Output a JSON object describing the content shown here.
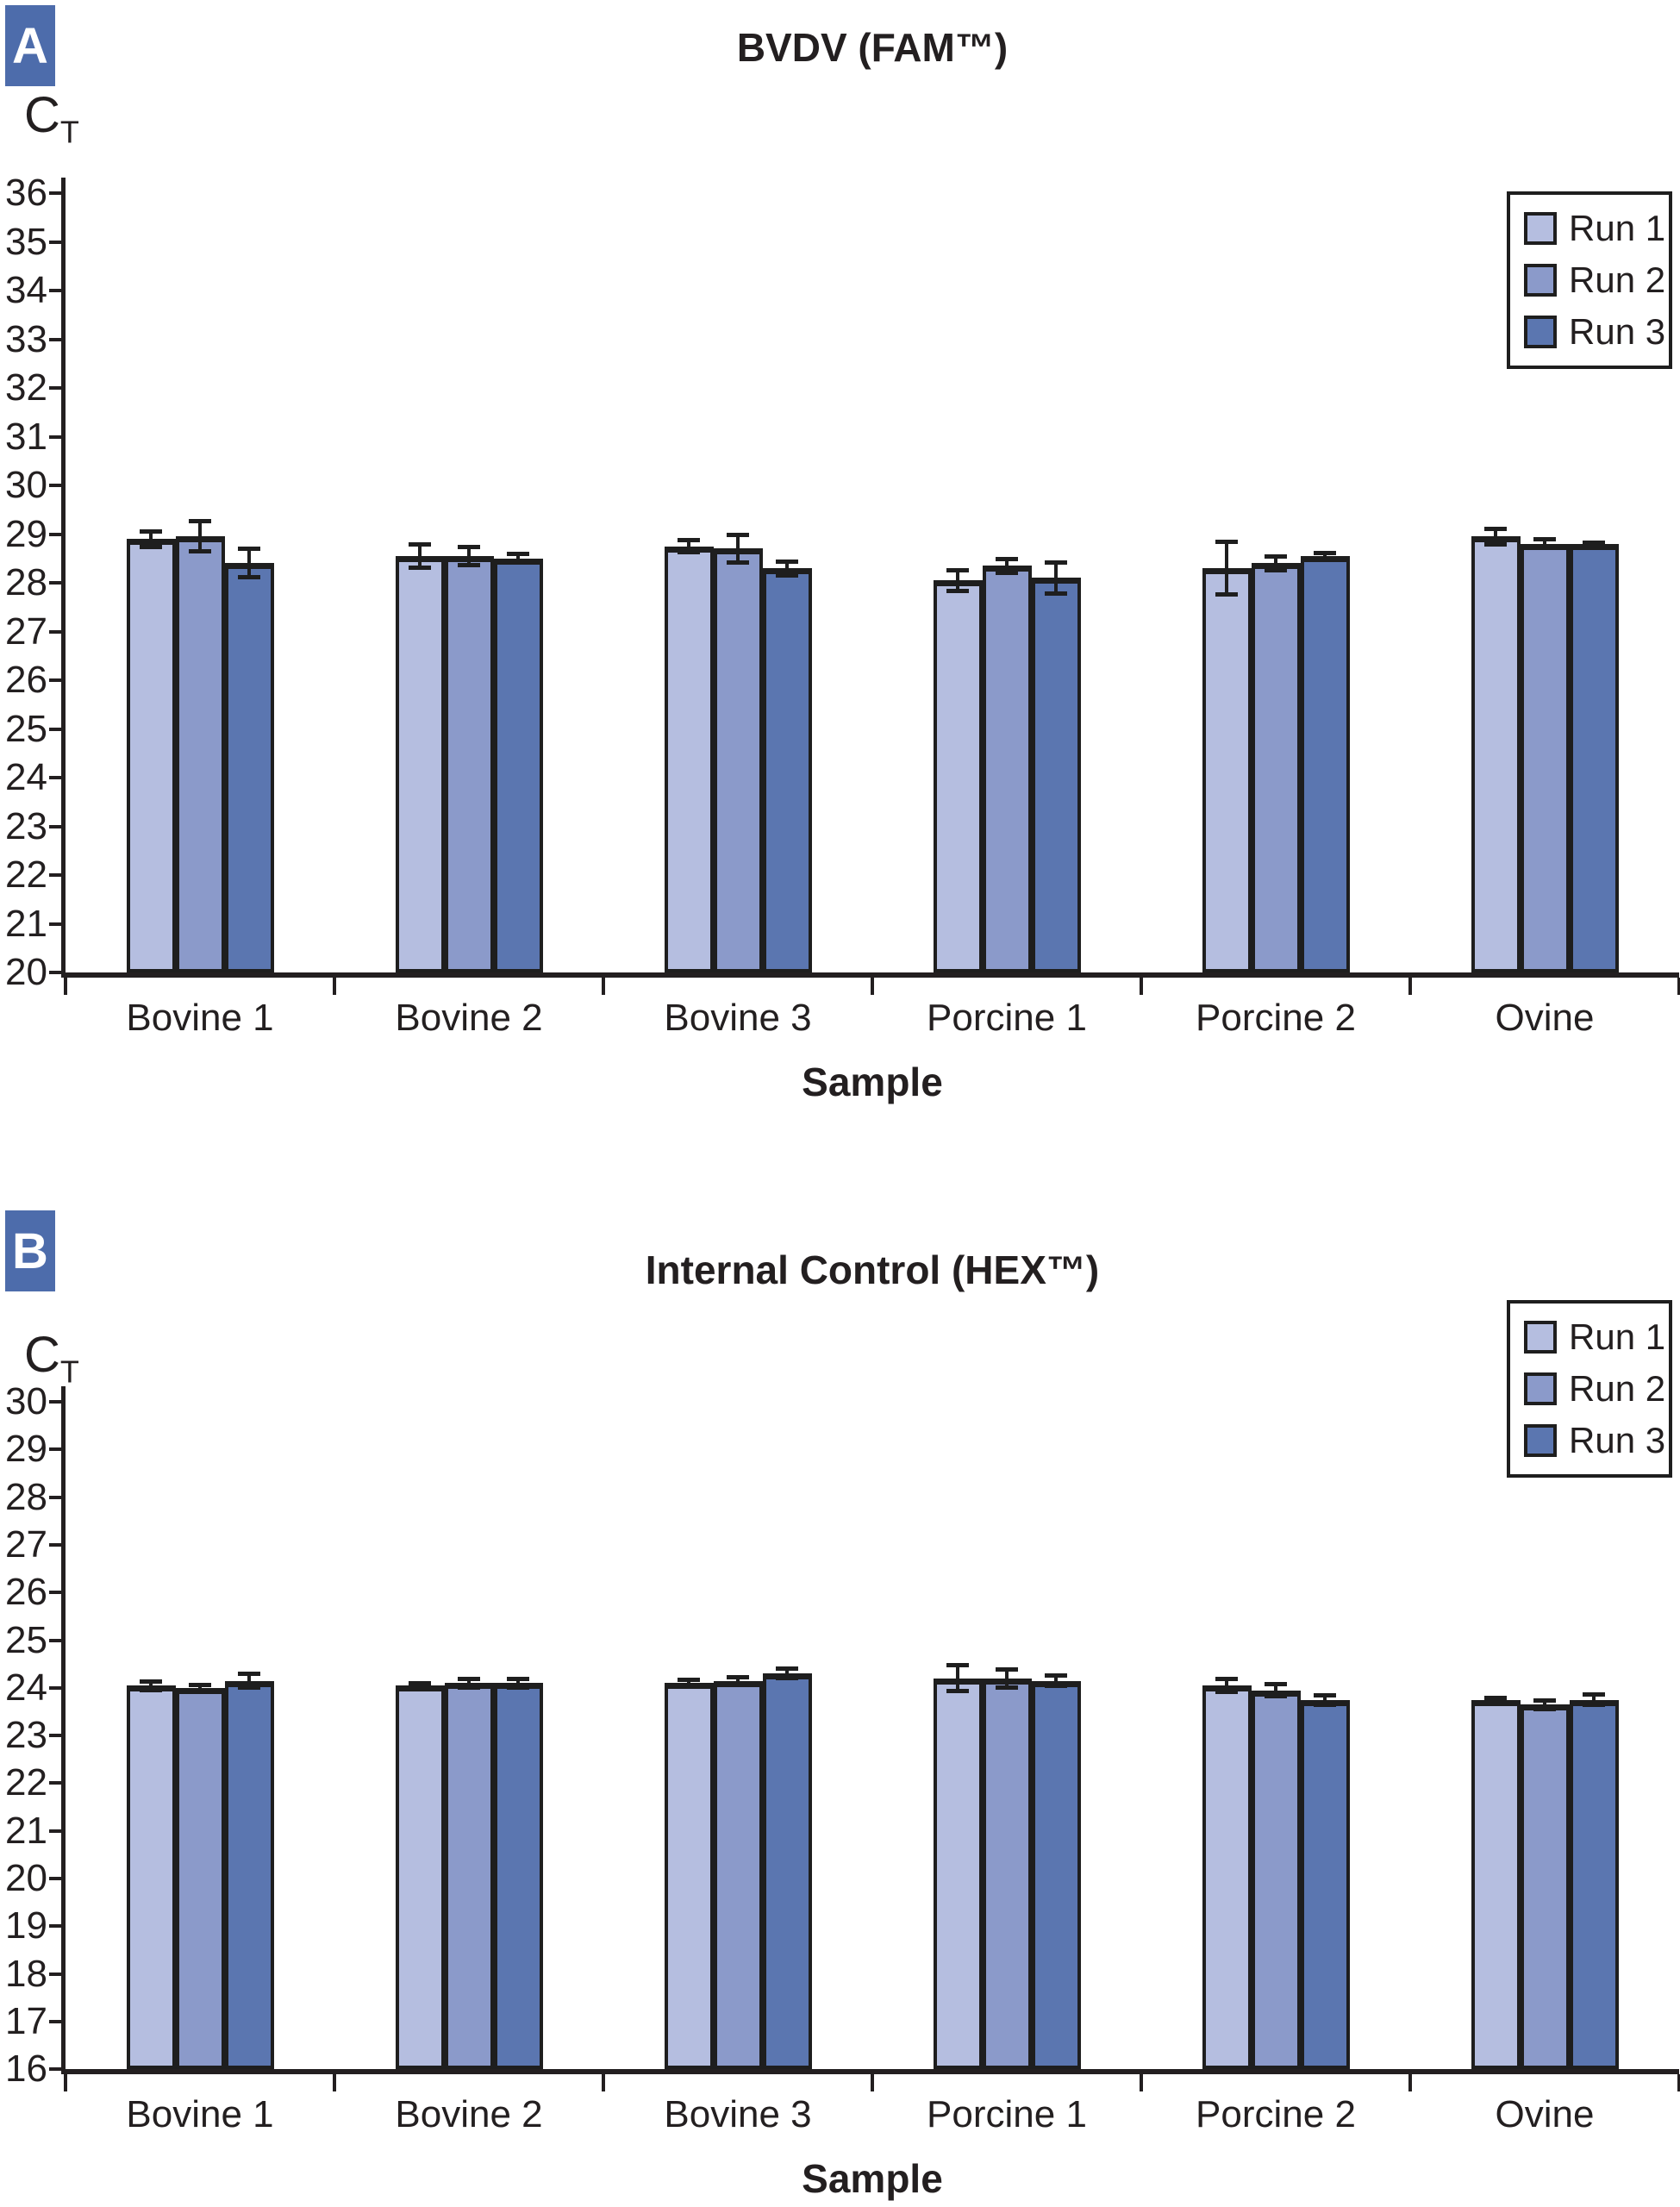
{
  "page": {
    "background": "#ffffff"
  },
  "colors": {
    "run1": "#b5bee0",
    "run2": "#8b9aca",
    "run3": "#5b76b0",
    "badge": "#4d6cab",
    "axis": "#231f20",
    "bar_border": "#1e1e1e"
  },
  "chart_data": [
    {
      "type": "bar",
      "panel_label": "A",
      "title": "BVDV (FAM™)",
      "y_axis_label_main": "C",
      "y_axis_label_sub": "T",
      "xlabel": "Sample",
      "ylim": [
        20,
        36
      ],
      "ytick_step": 1,
      "yticks": [
        20,
        21,
        22,
        23,
        24,
        25,
        26,
        27,
        28,
        29,
        30,
        31,
        32,
        33,
        34,
        35,
        36
      ],
      "grid": false,
      "legend_position": "top-right",
      "categories": [
        "Bovine 1",
        "Bovine 2",
        "Bovine 3",
        "Porcine 1",
        "Porcine 2",
        "Ovine"
      ],
      "series": [
        {
          "name": "Run 1",
          "color": "#b5bee0",
          "values": [
            28.9,
            28.55,
            28.75,
            28.05,
            28.3,
            28.95
          ],
          "errors": [
            0.17,
            0.25,
            0.13,
            0.22,
            0.55,
            0.17
          ]
        },
        {
          "name": "Run 2",
          "color": "#8b9aca",
          "values": [
            28.95,
            28.55,
            28.7,
            28.35,
            28.4,
            28.8
          ],
          "errors": [
            0.32,
            0.2,
            0.3,
            0.15,
            0.15,
            0.1
          ]
        },
        {
          "name": "Run 3",
          "color": "#5b76b0",
          "values": [
            28.4,
            28.5,
            28.3,
            28.1,
            28.55,
            28.8
          ],
          "errors": [
            0.3,
            0.1,
            0.15,
            0.33,
            0.07,
            0.04
          ]
        }
      ]
    },
    {
      "type": "bar",
      "panel_label": "B",
      "title": "Internal Control (HEX™)",
      "y_axis_label_main": "C",
      "y_axis_label_sub": "T",
      "xlabel": "Sample",
      "ylim": [
        16,
        30
      ],
      "ytick_step": 1,
      "yticks": [
        16,
        17,
        18,
        19,
        20,
        21,
        22,
        23,
        24,
        25,
        26,
        27,
        28,
        29,
        30
      ],
      "grid": false,
      "legend_position": "top-right",
      "categories": [
        "Bovine 1",
        "Bovine 2",
        "Bovine 3",
        "Porcine 1",
        "Porcine 2",
        "Ovine"
      ],
      "series": [
        {
          "name": "Run 1",
          "color": "#b5bee0",
          "values": [
            24.05,
            24.05,
            24.1,
            24.2,
            24.05,
            23.75
          ],
          "errors": [
            0.1,
            0.05,
            0.08,
            0.28,
            0.15,
            0.04
          ]
        },
        {
          "name": "Run 2",
          "color": "#8b9aca",
          "values": [
            24.0,
            24.1,
            24.15,
            24.2,
            23.95,
            23.65
          ],
          "errors": [
            0.07,
            0.1,
            0.09,
            0.2,
            0.14,
            0.1
          ]
        },
        {
          "name": "Run 3",
          "color": "#5b76b0",
          "values": [
            24.15,
            24.1,
            24.3,
            24.15,
            23.75,
            23.75
          ],
          "errors": [
            0.15,
            0.1,
            0.11,
            0.12,
            0.11,
            0.12
          ]
        }
      ]
    }
  ]
}
